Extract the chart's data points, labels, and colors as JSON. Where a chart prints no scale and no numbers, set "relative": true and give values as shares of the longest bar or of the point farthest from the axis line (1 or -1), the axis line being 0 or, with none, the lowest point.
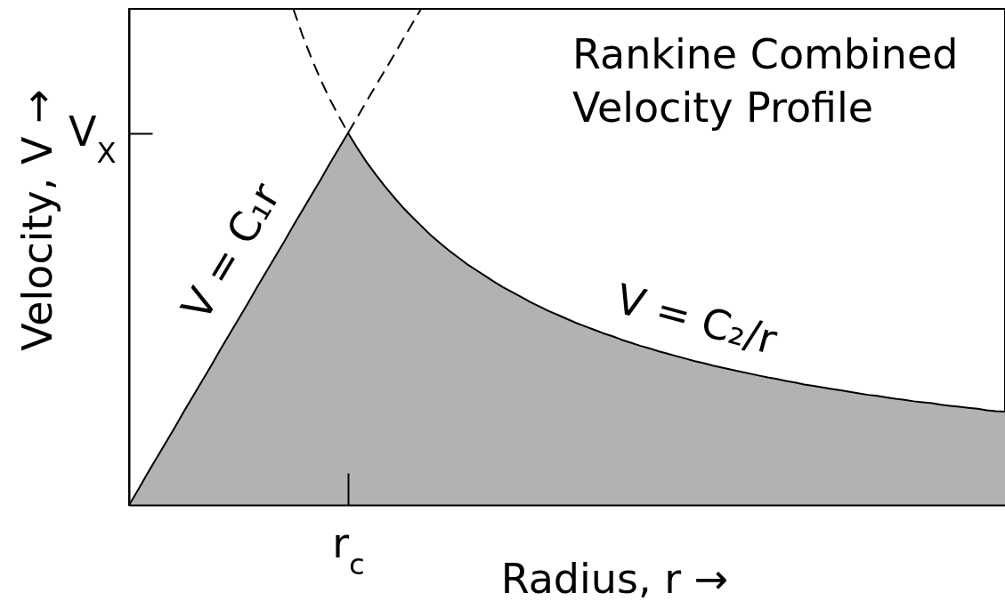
{
  "chart_data": {
    "type": "area",
    "relative": true,
    "title": "Rankine Combined Velocity Profile",
    "xlabel": "Radius, r →",
    "ylabel": "Velocity, V →",
    "categories": [
      null,
      null,
      null,
      null,
      null,
      null,
      null,
      null,
      null,
      null,
      null,
      null,
      null,
      null,
      null,
      null,
      null,
      null,
      null,
      null,
      null,
      null,
      null,
      null,
      null,
      null,
      null,
      null,
      null,
      null,
      null,
      null,
      null,
      null,
      null,
      null,
      null,
      null,
      null,
      null,
      null,
      null,
      null,
      null,
      null,
      null,
      null,
      null,
      null,
      null,
      null,
      null,
      null,
      null,
      null,
      null,
      null,
      null,
      null,
      null,
      null,
      null,
      null,
      null,
      null,
      null,
      null,
      null,
      null,
      null,
      null,
      null,
      null,
      null,
      null,
      null,
      null,
      null,
      null,
      null,
      null,
      null,
      null,
      null,
      null,
      null,
      null,
      null,
      null,
      null,
      null,
      null,
      null,
      null,
      null,
      null,
      null
    ],
    "series": [
      {
        "color": "#b2b2b2",
        "values": [
          0,
          0.031,
          0.063,
          0.094,
          0.125,
          0.156,
          0.188,
          0.219,
          0.25,
          0.281,
          0.313,
          0.344,
          0.375,
          0.406,
          0.438,
          0.469,
          0.5,
          0.531,
          0.563,
          0.594,
          0.625,
          0.656,
          0.688,
          0.719,
          0.75,
          0.72,
          0.692,
          0.667,
          0.643,
          0.621,
          0.6,
          0.581,
          0.563,
          0.545,
          0.529,
          0.514,
          0.5,
          0.486,
          0.474,
          0.462,
          0.45,
          0.439,
          0.429,
          0.419,
          0.409,
          0.4,
          0.391,
          0.383,
          0.375,
          0.367,
          0.36,
          0.353,
          0.346,
          0.34,
          0.333,
          0.327,
          0.321,
          0.316,
          0.31,
          0.305,
          0.3,
          0.295,
          0.29,
          0.286,
          0.281,
          0.277,
          0.273,
          0.269,
          0.265,
          0.261,
          0.257,
          0.254,
          0.25,
          0.247,
          0.243,
          0.24,
          0.237,
          0.234,
          0.231,
          0.228,
          0.225,
          0.222,
          0.22,
          0.217,
          0.214,
          0.212,
          0.209,
          0.207,
          0.205,
          0.202,
          0.2,
          0.198,
          0.196,
          0.194,
          0.191,
          0.189,
          0.188
        ]
      },
      {
        "type": "line",
        "color": "#000000",
        "line_style": "dashed",
        "values": [
          null,
          null,
          null,
          null,
          null,
          null,
          null,
          null,
          null,
          null,
          null,
          null,
          null,
          null,
          null,
          null,
          null,
          null,
          null,
          null,
          null,
          null,
          null,
          null,
          0.75,
          0.781,
          0.813,
          0.844,
          0.875,
          0.906,
          0.938,
          0.969,
          1,
          null,
          null,
          null,
          null,
          null,
          null,
          null,
          null,
          null,
          null,
          null,
          null,
          null,
          null,
          null,
          null,
          null,
          null,
          null,
          null,
          null,
          null,
          null,
          null,
          null,
          null,
          null,
          null,
          null,
          null,
          null,
          null,
          null,
          null,
          null,
          null,
          null,
          null,
          null,
          null,
          null,
          null,
          null,
          null,
          null,
          null,
          null,
          null,
          null,
          null,
          null,
          null,
          null,
          null,
          null,
          null,
          null,
          null,
          null,
          null,
          null,
          null,
          null,
          null
        ]
      },
      {
        "type": "line",
        "color": "#000000",
        "line_style": "dashed",
        "values": [
          null,
          null,
          null,
          null,
          null,
          null,
          null,
          null,
          null,
          null,
          null,
          null,
          null,
          null,
          null,
          null,
          null,
          null,
          1,
          0.947,
          0.9,
          0.857,
          0.818,
          0.783,
          0.75,
          null,
          null,
          null,
          null,
          null,
          null,
          null,
          null,
          null,
          null,
          null,
          null,
          null,
          null,
          null,
          null,
          null,
          null,
          null,
          null,
          null,
          null,
          null,
          null,
          null,
          null,
          null,
          null,
          null,
          null,
          null,
          null,
          null,
          null,
          null,
          null,
          null,
          null,
          null,
          null,
          null,
          null,
          null,
          null,
          null,
          null,
          null,
          null,
          null,
          null,
          null,
          null,
          null,
          null,
          null,
          null,
          null,
          null,
          null,
          null,
          null,
          null,
          null,
          null,
          null,
          null,
          null,
          null,
          null,
          null,
          null,
          null
        ]
      }
    ],
    "annotations": [
      "V = C₁r",
      "V = C₂/r",
      "r$_{c}$",
      "V$_{X}$"
    ]
  }
}
